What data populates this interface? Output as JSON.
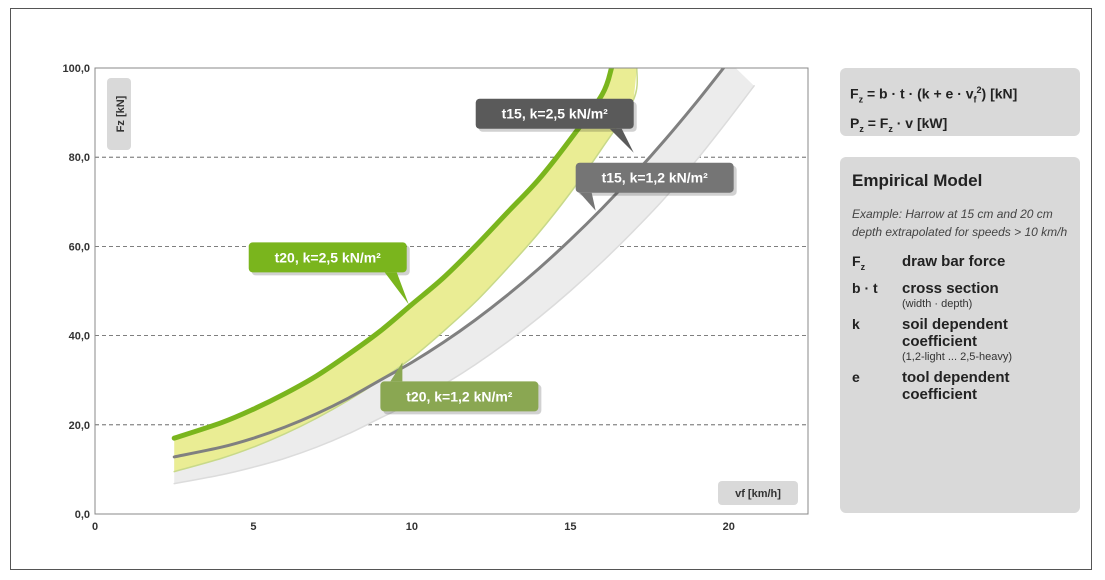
{
  "chart_data": {
    "type": "area",
    "ylabel": "Fz [kN]",
    "xlabel": "vf [km/h]",
    "xlim": [
      0,
      22.5
    ],
    "ylim": [
      0,
      100
    ],
    "x_ticks": [
      "0",
      "5",
      "10",
      "15",
      "20"
    ],
    "y_ticks": [
      "0,0",
      "20,0",
      "40,0",
      "60,0",
      "80,0",
      "100,0"
    ],
    "grid": "horizontal dashed",
    "series": [
      {
        "name": "t20, k=2,5 kN/m²",
        "color": "#7ab51d",
        "x": [
          2.5,
          4,
          5,
          6,
          7,
          8,
          9,
          10,
          11,
          12,
          13,
          14,
          15,
          16,
          16.3
        ],
        "y": [
          17,
          20.5,
          23.5,
          27,
          31,
          35.8,
          41,
          47,
          53,
          60,
          67.5,
          75,
          84,
          94,
          100
        ]
      },
      {
        "name": "t20, k=1,2 kN/m²",
        "color": "#c8d98a",
        "x": [
          2.5,
          4,
          5,
          6,
          7,
          8,
          9,
          10,
          11,
          12,
          13,
          14,
          15,
          16,
          17,
          17.1
        ],
        "y": [
          9.5,
          12.5,
          15,
          18,
          21.5,
          25.5,
          30,
          35,
          41,
          47.5,
          55,
          63,
          72,
          82,
          93,
          100
        ]
      },
      {
        "name": "t15, k=2,5 kN/m²",
        "color": "#808080",
        "x": [
          2.5,
          4,
          5,
          6,
          7,
          8,
          9,
          10,
          11,
          12,
          13,
          14,
          15,
          16,
          17,
          18,
          19,
          20
        ],
        "y": [
          12.8,
          15,
          17,
          19.5,
          22.5,
          26,
          30,
          34,
          38.5,
          43.5,
          49,
          55,
          61.5,
          68.5,
          76,
          84,
          92.5,
          101.5
        ]
      },
      {
        "name": "t15, k=1,2 kN/m²",
        "color": "#dcdcdc",
        "x": [
          2.5,
          4,
          5,
          6,
          7,
          8,
          9,
          10,
          11,
          12,
          13,
          14,
          15,
          16,
          17,
          18,
          19,
          20,
          20.8
        ],
        "y": [
          6.8,
          8.8,
          10.5,
          12.5,
          15,
          18,
          21.5,
          25,
          29,
          33.5,
          38.5,
          44,
          50,
          56.5,
          63.5,
          71,
          79.5,
          88.5,
          96
        ]
      }
    ],
    "bands": [
      {
        "upper": "t20, k=2,5 kN/m²",
        "lower": "t20, k=1,2 kN/m²",
        "color": "#eaed94"
      },
      {
        "upper": "t15, k=2,5 kN/m²",
        "lower": "t15, k=1,2 kN/m²",
        "color": "#ececec"
      }
    ],
    "annotations": [
      {
        "text": "t15, k=2,5 kN/m²",
        "color": "#5a5a5a",
        "points_to": {
          "x": 17,
          "y": 81
        }
      },
      {
        "text": "t15, k=1,2 kN/m²",
        "color": "#757575",
        "points_to": {
          "x": 15.8,
          "y": 68
        }
      },
      {
        "text": "t20, k=2,5 kN/m²",
        "color": "#7ab51d",
        "points_to": {
          "x": 9.9,
          "y": 47
        }
      },
      {
        "text": "t20, k=1,2 kN/m²",
        "color": "#8aa752",
        "points_to": {
          "x": 9.7,
          "y": 34
        }
      }
    ]
  },
  "formulas": {
    "line1": {
      "pre": "F",
      "sub1": "z",
      "mid": " = b · t · (k + e · v",
      "sub2": "f",
      "sup": "2",
      "post": ") [kN]"
    },
    "line2": {
      "pre": "P",
      "sub1": "z",
      "post": " = F",
      "sub2": "z",
      "tail": " · v [kW]"
    }
  },
  "model": {
    "title": "Empirical Model",
    "example": "Example: Harrow at 15 cm and 20 cm depth extrapolated for speeds > 10 km/h",
    "legend": [
      {
        "symbol": "F",
        "symbol_sub": "z",
        "definition": "draw bar force",
        "note": ""
      },
      {
        "symbol": "b · t",
        "symbol_sub": "",
        "definition": "cross section",
        "note": "(width · depth)"
      },
      {
        "symbol": "k",
        "symbol_sub": "",
        "definition": "soil dependent coefficient",
        "note": "(1,2-light ... 2,5-heavy)"
      },
      {
        "symbol": "e",
        "symbol_sub": "",
        "definition": "tool dependent coefficient",
        "note": ""
      }
    ]
  }
}
